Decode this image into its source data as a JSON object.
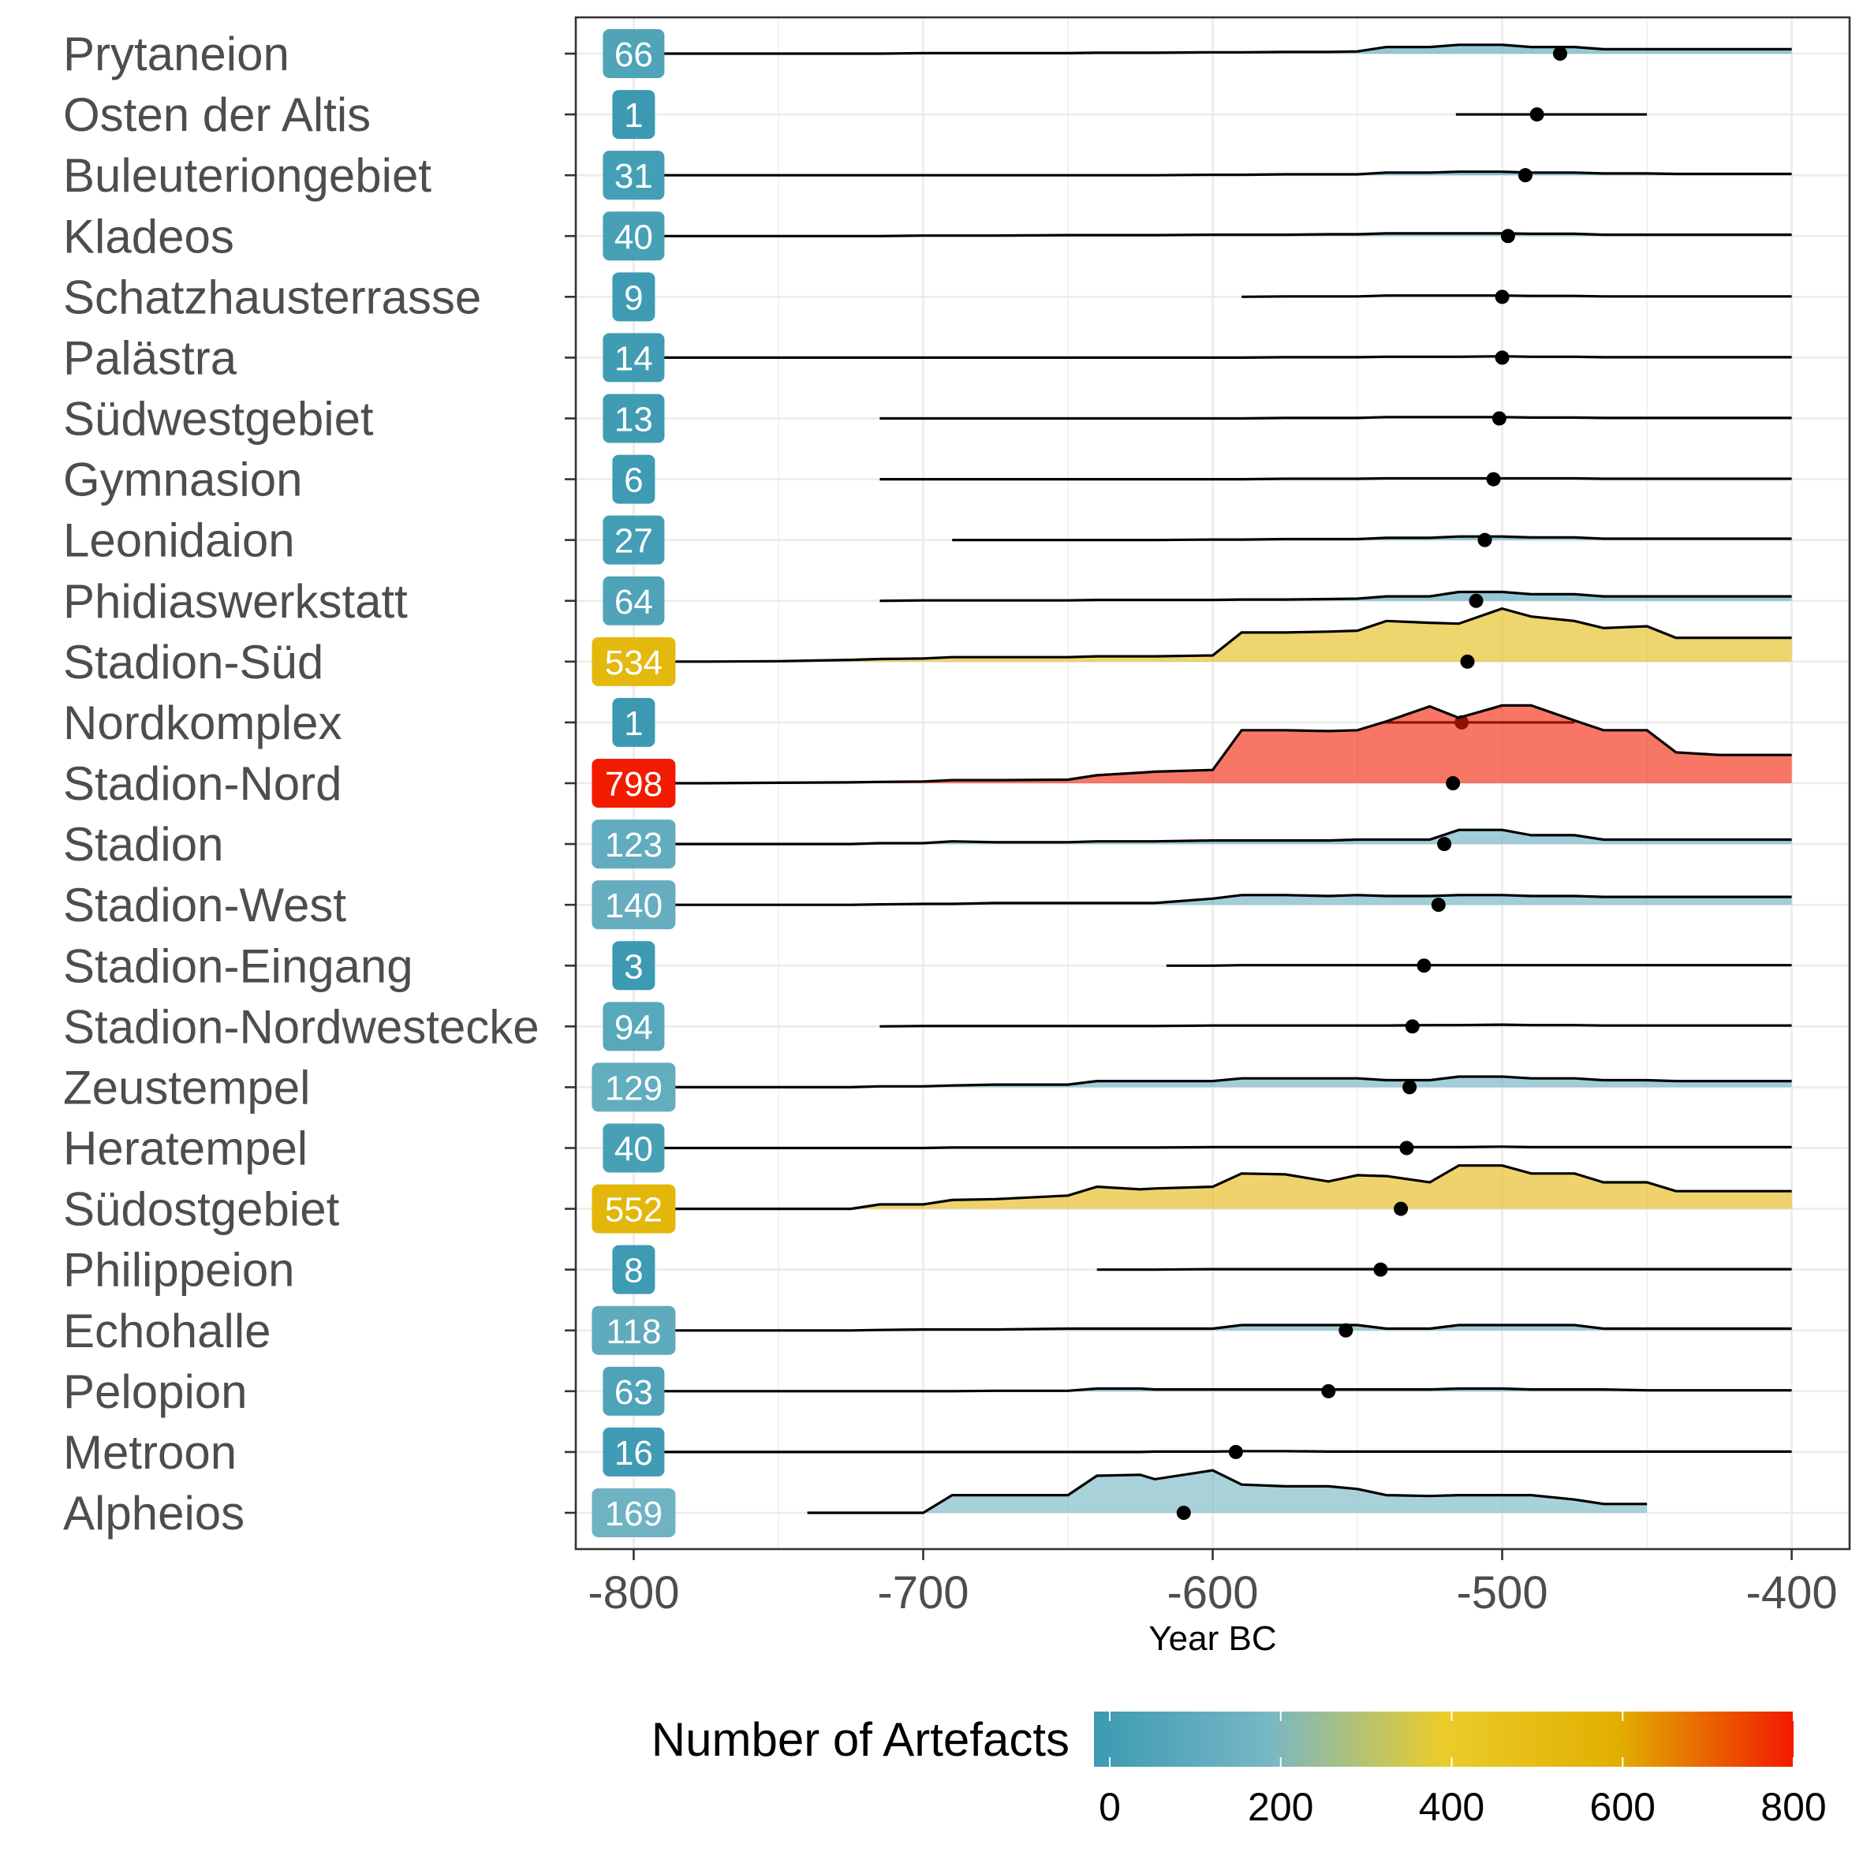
{
  "chart_data": {
    "type": "ridgeline",
    "xlabel": "Year BC",
    "xlim": [
      -820,
      -380
    ],
    "xticks": [
      "-800",
      "-700",
      "-600",
      "-500",
      "-400"
    ],
    "grid": true,
    "legend_title": "Number of Artefacts",
    "legend_position": "bottom",
    "legend_ticks": [
      "0",
      "200",
      "400",
      "600",
      "800"
    ],
    "color_scale": {
      "range": [
        0,
        800
      ],
      "stops": [
        "#3b9ab2",
        "#78b7c5",
        "#ebcc2a",
        "#e1af00",
        "#f21a00"
      ]
    },
    "x_grid": [
      -800,
      -775,
      -750,
      -725,
      -715,
      -700,
      -690,
      -675,
      -650,
      -640,
      -625,
      -620,
      -600,
      -590,
      -575,
      -560,
      -550,
      -540,
      -525,
      -515,
      -500,
      -490,
      -475,
      -465,
      -450,
      -440,
      -425,
      -400
    ],
    "rows": [
      {
        "label": "Prytaneion",
        "count": "66",
        "point": -480,
        "ci": null,
        "start": -800,
        "end": -400,
        "density": [
          0,
          0,
          0,
          0,
          0,
          0.01,
          0.01,
          0.01,
          0.01,
          0.02,
          0.02,
          0.02,
          0.03,
          0.03,
          0.04,
          0.04,
          0.05,
          0.15,
          0.15,
          0.2,
          0.2,
          0.15,
          0.15,
          0.1,
          0.1,
          0.1,
          0.1,
          0.1
        ]
      },
      {
        "label": "Osten der Altis",
        "count": "1",
        "point": -488,
        "ci": [
          -516,
          -450
        ],
        "start": null,
        "end": null,
        "density": null
      },
      {
        "label": "Buleuteriongebiet",
        "count": "31",
        "point": -492,
        "ci": null,
        "start": -800,
        "end": -400,
        "density": [
          0,
          0,
          0,
          0,
          0,
          0,
          0,
          0,
          0,
          0,
          0,
          0,
          0.01,
          0.01,
          0.02,
          0.02,
          0.02,
          0.06,
          0.06,
          0.08,
          0.08,
          0.06,
          0.06,
          0.04,
          0.04,
          0.03,
          0.03,
          0.03
        ]
      },
      {
        "label": "Kladeos",
        "count": "40",
        "point": -498,
        "ci": null,
        "start": -800,
        "end": -400,
        "density": [
          0,
          0,
          0,
          0,
          0,
          0.01,
          0.01,
          0.01,
          0.02,
          0.02,
          0.02,
          0.02,
          0.03,
          0.03,
          0.03,
          0.04,
          0.04,
          0.06,
          0.06,
          0.06,
          0.06,
          0.05,
          0.05,
          0.03,
          0.03,
          0.03,
          0.03,
          0.03
        ]
      },
      {
        "label": "Schatzhausterrasse",
        "count": "9",
        "point": -500,
        "ci": null,
        "start": -590,
        "end": -400,
        "density": [
          0,
          0,
          0,
          0,
          0,
          0,
          0,
          0,
          0,
          0,
          0,
          0,
          0,
          0,
          0.01,
          0.01,
          0.01,
          0.03,
          0.03,
          0.03,
          0.03,
          0.02,
          0.02,
          0.01,
          0.01,
          0.01,
          0.01,
          0.01
        ]
      },
      {
        "label": "Palästra",
        "count": "14",
        "point": -500,
        "ci": null,
        "start": -800,
        "end": -400,
        "density": [
          0,
          0,
          0,
          0,
          0,
          0,
          0,
          0,
          0,
          0,
          0,
          0,
          0,
          0,
          0.01,
          0.01,
          0.01,
          0.02,
          0.02,
          0.02,
          0.03,
          0.02,
          0.02,
          0.01,
          0.01,
          0.01,
          0.01,
          0.01
        ]
      },
      {
        "label": "Südwestgebiet",
        "count": "13",
        "point": -501,
        "ci": null,
        "start": -715,
        "end": -400,
        "density": [
          0,
          0,
          0,
          0,
          0,
          0,
          0,
          0,
          0,
          0,
          0,
          0,
          0,
          0,
          0.01,
          0.01,
          0.01,
          0.03,
          0.03,
          0.03,
          0.03,
          0.02,
          0.02,
          0.01,
          0.01,
          0.01,
          0.01,
          0.01
        ]
      },
      {
        "label": "Gymnasion",
        "count": "6",
        "point": -503,
        "ci": null,
        "start": -715,
        "end": -400,
        "density": [
          0,
          0,
          0,
          0,
          0,
          0,
          0,
          0,
          0,
          0,
          0,
          0,
          0,
          0,
          0.01,
          0.01,
          0.01,
          0.02,
          0.02,
          0.02,
          0.02,
          0.02,
          0.02,
          0.01,
          0.01,
          0.01,
          0.01,
          0.01
        ]
      },
      {
        "label": "Leonidaion",
        "count": "27",
        "point": -506,
        "ci": null,
        "start": -690,
        "end": -400,
        "density": [
          0,
          0,
          0,
          0,
          0,
          0,
          0,
          0,
          0,
          0,
          0,
          0,
          0.01,
          0.01,
          0.02,
          0.02,
          0.02,
          0.05,
          0.05,
          0.08,
          0.08,
          0.06,
          0.06,
          0.03,
          0.03,
          0.03,
          0.03,
          0.03
        ]
      },
      {
        "label": "Phidiaswerkstatt",
        "count": "64",
        "point": -509,
        "ci": null,
        "start": -715,
        "end": -400,
        "density": [
          0,
          0,
          0,
          0,
          0,
          0.01,
          0.01,
          0.01,
          0.01,
          0.02,
          0.02,
          0.02,
          0.02,
          0.03,
          0.03,
          0.04,
          0.05,
          0.1,
          0.1,
          0.2,
          0.2,
          0.15,
          0.15,
          0.1,
          0.1,
          0.1,
          0.1,
          0.1
        ]
      },
      {
        "label": "Stadion-Süd",
        "count": "534",
        "point": -512,
        "ci": null,
        "start": -800,
        "end": -400,
        "density": [
          0,
          0,
          0.01,
          0.04,
          0.06,
          0.07,
          0.1,
          0.1,
          0.1,
          0.12,
          0.12,
          0.12,
          0.14,
          0.66,
          0.66,
          0.68,
          0.7,
          0.92,
          0.88,
          0.86,
          1.2,
          1.02,
          0.92,
          0.76,
          0.8,
          0.54,
          0.54,
          0.54
        ]
      },
      {
        "label": "Nordkomplex",
        "count": "1",
        "point": -514,
        "ci": [
          -541,
          -475
        ],
        "start": null,
        "end": null,
        "density": null
      },
      {
        "label": "Stadion-Nord",
        "count": "798",
        "point": -517,
        "ci": null,
        "start": -800,
        "end": -400,
        "density": [
          0,
          0,
          0.01,
          0.02,
          0.03,
          0.04,
          0.07,
          0.07,
          0.08,
          0.18,
          0.24,
          0.26,
          0.3,
          1.2,
          1.2,
          1.18,
          1.2,
          1.4,
          1.74,
          1.48,
          1.76,
          1.76,
          1.42,
          1.2,
          1.2,
          0.7,
          0.64,
          0.64
        ]
      },
      {
        "label": "Stadion",
        "count": "123",
        "point": -520,
        "ci": null,
        "start": -800,
        "end": -400,
        "density": [
          0,
          0,
          0,
          0,
          0.02,
          0.02,
          0.06,
          0.04,
          0.04,
          0.06,
          0.06,
          0.06,
          0.08,
          0.08,
          0.08,
          0.08,
          0.1,
          0.1,
          0.1,
          0.32,
          0.32,
          0.2,
          0.2,
          0.1,
          0.1,
          0.1,
          0.1,
          0.1
        ]
      },
      {
        "label": "Stadion-West",
        "count": "140",
        "point": -522,
        "ci": null,
        "start": -800,
        "end": -400,
        "density": [
          0,
          0,
          0,
          0,
          0.01,
          0.02,
          0.02,
          0.04,
          0.04,
          0.04,
          0.04,
          0.04,
          0.14,
          0.22,
          0.22,
          0.2,
          0.22,
          0.2,
          0.2,
          0.22,
          0.22,
          0.2,
          0.2,
          0.18,
          0.18,
          0.18,
          0.18,
          0.18
        ]
      },
      {
        "label": "Stadion-Eingang",
        "count": "3",
        "point": -527,
        "ci": null,
        "start": -616,
        "end": -400,
        "density": [
          0,
          0,
          0,
          0,
          0,
          0,
          0,
          0,
          0,
          0,
          0,
          0,
          0,
          0.01,
          0.01,
          0.01,
          0.01,
          0.01,
          0.01,
          0.01,
          0.01,
          0.01,
          0.01,
          0.01,
          0.01,
          0.01,
          0.01,
          0.01
        ]
      },
      {
        "label": "Stadion-Nordwestecke",
        "count": "94",
        "point": -531,
        "ci": null,
        "start": -715,
        "end": -400,
        "density": [
          0,
          0,
          0,
          0,
          0,
          0.01,
          0.01,
          0.01,
          0.01,
          0.01,
          0.01,
          0.01,
          0.02,
          0.02,
          0.02,
          0.02,
          0.02,
          0.02,
          0.03,
          0.03,
          0.04,
          0.03,
          0.03,
          0.02,
          0.02,
          0.02,
          0.02,
          0.02
        ]
      },
      {
        "label": "Zeustempel",
        "count": "129",
        "point": -532,
        "ci": null,
        "start": -800,
        "end": -400,
        "density": [
          0,
          0,
          0,
          0,
          0.02,
          0.02,
          0.04,
          0.06,
          0.06,
          0.14,
          0.14,
          0.14,
          0.14,
          0.2,
          0.2,
          0.2,
          0.2,
          0.16,
          0.16,
          0.24,
          0.24,
          0.2,
          0.2,
          0.16,
          0.16,
          0.14,
          0.14,
          0.14
        ]
      },
      {
        "label": "Heratempel",
        "count": "40",
        "point": -533,
        "ci": null,
        "start": -800,
        "end": -400,
        "density": [
          0,
          0,
          0,
          0,
          0,
          0,
          0.01,
          0.01,
          0.01,
          0.01,
          0.01,
          0.01,
          0.02,
          0.02,
          0.02,
          0.02,
          0.02,
          0.02,
          0.02,
          0.02,
          0.03,
          0.02,
          0.02,
          0.02,
          0.02,
          0.02,
          0.02,
          0.02
        ]
      },
      {
        "label": "Südostgebiet",
        "count": "552",
        "point": -535,
        "ci": null,
        "start": -800,
        "end": -400,
        "density": [
          0,
          0,
          0,
          0,
          0.1,
          0.1,
          0.2,
          0.22,
          0.3,
          0.5,
          0.44,
          0.46,
          0.5,
          0.8,
          0.78,
          0.62,
          0.76,
          0.74,
          0.6,
          0.98,
          0.98,
          0.8,
          0.8,
          0.6,
          0.6,
          0.4,
          0.4,
          0.4
        ]
      },
      {
        "label": "Philippeion",
        "count": "8",
        "point": -542,
        "ci": null,
        "start": -640,
        "end": -400,
        "density": [
          0,
          0,
          0,
          0,
          0,
          0,
          0,
          0,
          0,
          0,
          0,
          0,
          0.01,
          0.01,
          0.01,
          0.01,
          0.01,
          0.01,
          0.01,
          0.01,
          0.01,
          0.01,
          0.01,
          0.01,
          0.01,
          0.01,
          0.01,
          0.01
        ]
      },
      {
        "label": "Echohalle",
        "count": "118",
        "point": -554,
        "ci": null,
        "start": -800,
        "end": -400,
        "density": [
          0,
          0,
          0,
          0,
          0.01,
          0.02,
          0.02,
          0.02,
          0.04,
          0.04,
          0.04,
          0.04,
          0.04,
          0.12,
          0.12,
          0.12,
          0.12,
          0.04,
          0.04,
          0.12,
          0.12,
          0.12,
          0.12,
          0.04,
          0.04,
          0.04,
          0.04,
          0.04
        ]
      },
      {
        "label": "Pelopion",
        "count": "63",
        "point": -560,
        "ci": null,
        "start": -800,
        "end": -400,
        "density": [
          0,
          0,
          0,
          0,
          0,
          0,
          0,
          0.01,
          0.01,
          0.06,
          0.06,
          0.04,
          0.04,
          0.04,
          0.04,
          0.04,
          0.04,
          0.04,
          0.04,
          0.06,
          0.06,
          0.04,
          0.04,
          0.04,
          0.02,
          0.02,
          0.02,
          0.02
        ]
      },
      {
        "label": "Metroon",
        "count": "16",
        "point": -592,
        "ci": null,
        "start": -800,
        "end": -400,
        "density": [
          0,
          0,
          0,
          0,
          0,
          0,
          0,
          0,
          0,
          0,
          0,
          0.01,
          0.01,
          0.02,
          0.02,
          0.01,
          0.01,
          0.01,
          0.01,
          0.01,
          0.01,
          0.01,
          0.01,
          0.01,
          0.01,
          0.01,
          0.01,
          0.01
        ]
      },
      {
        "label": "Alpheios",
        "count": "169",
        "point": -610,
        "ci": null,
        "start": -740,
        "end": -450,
        "density": [
          0,
          0,
          0,
          0,
          0,
          0,
          0.4,
          0.4,
          0.4,
          0.84,
          0.86,
          0.76,
          0.96,
          0.64,
          0.6,
          0.6,
          0.54,
          0.4,
          0.38,
          0.4,
          0.4,
          0.4,
          0.3,
          0.2,
          0.2,
          0.2,
          0.2,
          0.2
        ]
      }
    ]
  }
}
